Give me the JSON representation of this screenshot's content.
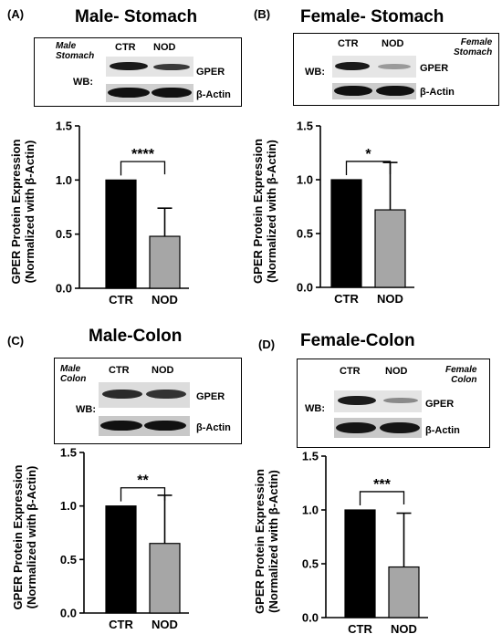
{
  "panels": [
    {
      "id": "A",
      "label": "(A)",
      "title": "Male- Stomach",
      "blot": {
        "tissue_line1": "Male",
        "tissue_line2": "Stomach",
        "wb": "WB:",
        "ctr": "CTR",
        "nod": "NOD",
        "gper": "GPER",
        "actin": "β-Actin"
      },
      "significance": "****"
    },
    {
      "id": "B",
      "label": "(B)",
      "title": "Female- Stomach",
      "blot": {
        "tissue_line1": "Female",
        "tissue_line2": "Stomach",
        "wb": "WB:",
        "ctr": "CTR",
        "nod": "NOD",
        "gper": "GPER",
        "actin": "β-Actin"
      },
      "significance": "*"
    },
    {
      "id": "C",
      "label": "(C)",
      "title": "Male-Colon",
      "blot": {
        "tissue_line1": "Male",
        "tissue_line2": "Colon",
        "wb": "WB:",
        "ctr": "CTR",
        "nod": "NOD",
        "gper": "GPER",
        "actin": "β-Actin"
      },
      "significance": "**"
    },
    {
      "id": "D",
      "label": "(D)",
      "title": "Female-Colon",
      "blot": {
        "tissue_line1": "Female",
        "tissue_line2": "Colon",
        "wb": "WB:",
        "ctr": "CTR",
        "nod": "NOD",
        "gper": "GPER",
        "actin": "β-Actin"
      },
      "significance": "***"
    }
  ],
  "colors": {
    "ctr": "#000000",
    "nod": "#a6a6a6"
  },
  "chart_data": [
    {
      "type": "bar",
      "panel": "A",
      "title": "Male- Stomach",
      "categories": [
        "CTR",
        "NOD"
      ],
      "values": [
        1.0,
        0.48
      ],
      "error": [
        0,
        0.26
      ],
      "ylabel": "GPER Protein Expression",
      "ylabel2": "(Normalized with β-Actin)",
      "ylim": [
        0,
        1.5
      ],
      "yticks": [
        "0.0",
        "0.5",
        "1.0",
        "1.5"
      ],
      "grid": false
    },
    {
      "type": "bar",
      "panel": "B",
      "title": "Female- Stomach",
      "categories": [
        "CTR",
        "NOD"
      ],
      "values": [
        1.0,
        0.72
      ],
      "error": [
        0,
        0.44
      ],
      "ylabel": "GPER Protein Expression",
      "ylabel2": "(Normalized with β-Actin)",
      "ylim": [
        0,
        1.5
      ],
      "yticks": [
        "0.0",
        "0.5",
        "1.0",
        "1.5"
      ],
      "grid": false
    },
    {
      "type": "bar",
      "panel": "C",
      "title": "Male-Colon",
      "categories": [
        "CTR",
        "NOD"
      ],
      "values": [
        1.0,
        0.65
      ],
      "error": [
        0,
        0.45
      ],
      "ylabel": "GPER Protein Expression",
      "ylabel2": "(Normalized with β-Actin)",
      "ylim": [
        0,
        1.5
      ],
      "yticks": [
        "0.0",
        "0.5",
        "1.0",
        "1.5"
      ],
      "grid": false
    },
    {
      "type": "bar",
      "panel": "D",
      "title": "Female-Colon",
      "categories": [
        "CTR",
        "NOD"
      ],
      "values": [
        1.0,
        0.47
      ],
      "error": [
        0,
        0.5
      ],
      "ylabel": "GPER Protein Expression",
      "ylabel2": "(Normalized with β-Actin)",
      "ylim": [
        0,
        1.5
      ],
      "yticks": [
        "0.0",
        "0.5",
        "1.0",
        "1.5"
      ],
      "grid": false
    }
  ]
}
